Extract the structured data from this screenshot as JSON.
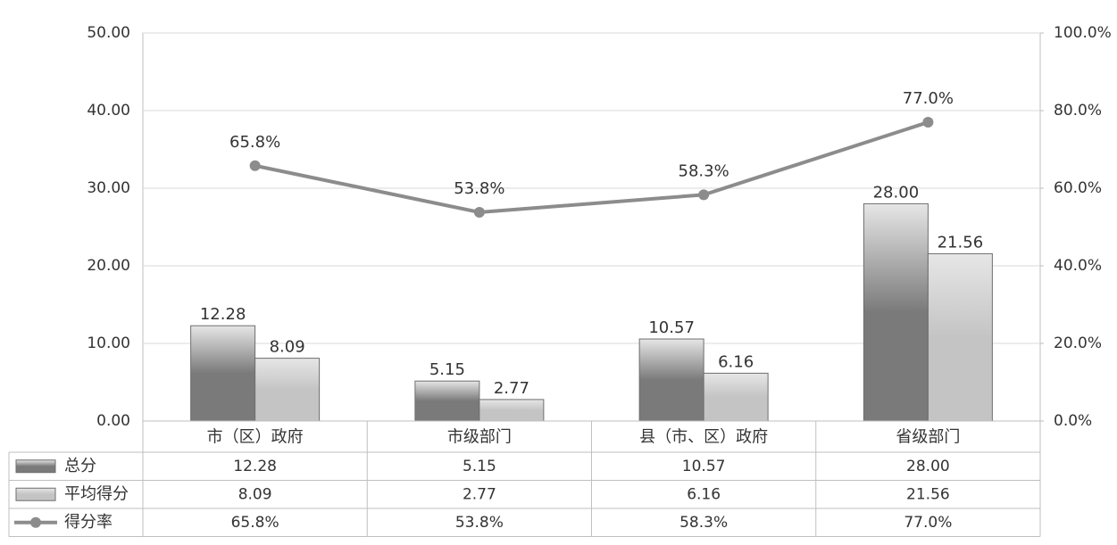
{
  "chart_data": {
    "type": "bar-line",
    "categories": [
      "市（区）政府",
      "市级部门",
      "县（市、区）政府",
      "省级部门"
    ],
    "series": [
      {
        "name": "总分",
        "type": "bar",
        "color": "#7a7a7a",
        "values": [
          12.28,
          5.15,
          10.57,
          28
        ],
        "value_labels": [
          "12.28",
          "5.15",
          "10.57",
          "28.00"
        ]
      },
      {
        "name": "平均得分",
        "type": "bar",
        "color": "#c4c4c4",
        "values": [
          8.09,
          2.77,
          6.16,
          21.56
        ]
      },
      {
        "name": "得分率",
        "type": "line",
        "axis": "y2",
        "color": "#8c8c8c",
        "values": [
          65.8,
          53.8,
          58.3,
          77
        ],
        "value_labels": [
          "65.8%",
          "53.8%",
          "58.3%",
          "77.0%"
        ]
      }
    ],
    "ylim": [
      0,
      50
    ],
    "yticks": [
      {
        "value": 0,
        "label": "0.00"
      },
      {
        "value": 10,
        "label": "10.00"
      },
      {
        "value": 20,
        "label": "20.00"
      },
      {
        "value": 30,
        "label": "30.00"
      },
      {
        "value": 40,
        "label": "40.00"
      },
      {
        "value": 50,
        "label": "50.00"
      }
    ],
    "y2lim": [
      0,
      100
    ],
    "y2ticks": [
      {
        "value": 0,
        "label": "0.0%"
      },
      {
        "value": 20,
        "label": "20.0%"
      },
      {
        "value": 40,
        "label": "40.0%"
      },
      {
        "value": 60,
        "label": "60.0%"
      },
      {
        "value": 80,
        "label": "80.0%"
      },
      {
        "value": 100,
        "label": "100.0%"
      }
    ],
    "grid": true,
    "data_table": true
  }
}
